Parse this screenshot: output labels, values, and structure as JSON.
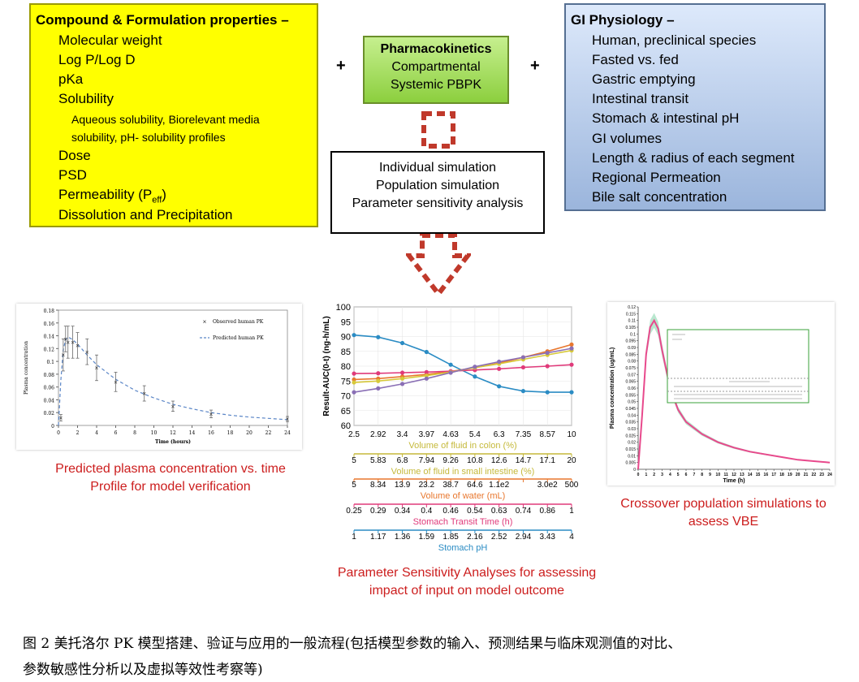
{
  "compound_box": {
    "title": "Compound & Formulation properties",
    "title_dash": " –",
    "items": [
      "Molecular weight",
      "Log P/Log D",
      "pKa",
      "Solubility"
    ],
    "solubility_sub_1": "Aqueous solubility, Biorelevant media",
    "solubility_sub_2": "solubility, pH- solubility profiles",
    "items_after": [
      "Dose",
      "PSD"
    ],
    "permeability_label": "Permeability (P",
    "permeability_sub": "eff",
    "permeability_close": ")",
    "last_item": "Dissolution and Precipitation"
  },
  "pk_box": {
    "title": "Pharmacokinetics",
    "line1": "Compartmental",
    "line2": "Systemic PBPK"
  },
  "gi_box": {
    "title": "GI Physiology",
    "title_dash": " –",
    "items": [
      "Human, preclinical species",
      "Fasted vs. fed",
      "Gastric emptying",
      "Intestinal transit",
      "Stomach & intestinal pH",
      "GI volumes",
      "Length & radius of each segment",
      "Regional Permeation",
      "Bile salt concentration"
    ]
  },
  "plus_left": "+",
  "plus_right": "+",
  "simulation_box": {
    "line1": "Individual simulation",
    "line2": "Population simulation",
    "line3": "Parameter sensitivity analysis"
  },
  "left_caption": {
    "line1": "Predicted plasma concentration vs. time",
    "line2": "Profile for model verification"
  },
  "middle_caption": {
    "line1": "Parameter Sensitivity Analyses for assessing",
    "line2": "impact of input on model outcome"
  },
  "right_caption": {
    "line1": "Crossover population simulations to",
    "line2": "assess VBE"
  },
  "figure_caption": {
    "line1": "图 2  美托洛尔 PK 模型搭建、验证与应用的一般流程(包括模型参数的输入、预测结果与临床观测值的对比、",
    "line2": "参数敏感性分析以及虚拟等效性考察等)"
  },
  "colors": {
    "yellow_box": "#ffff00",
    "red_arrow": "#c0392b",
    "caption_red": "#cc1d1d",
    "series_blue": "#2b8cc4",
    "series_orange": "#e8772e",
    "series_pink": "#e03a7a",
    "series_yellow": "#d7c93a",
    "series_purple": "#8a6fb5",
    "series_magenta": "#e8498c"
  },
  "chart_data": [
    {
      "type": "line",
      "xlabel": "Time (hours)",
      "ylabel": "Plasma concentration",
      "xlim": [
        0,
        24
      ],
      "ylim": [
        0,
        0.18
      ],
      "x_ticks": [
        "0",
        "2",
        "4",
        "6",
        "8",
        "10",
        "12",
        "14",
        "16",
        "18",
        "20",
        "22",
        "24"
      ],
      "y_ticks": [
        "0",
        "0.02",
        "0.04",
        "0.06",
        "0.08",
        "0.1",
        "0.12",
        "0.14",
        "0.16",
        "0.18"
      ],
      "legend": [
        "Observed human PK",
        "Predicted human PK"
      ],
      "series": [
        {
          "name": "Observed human PK",
          "x": [
            0.25,
            0.5,
            0.75,
            1,
            1.5,
            2,
            3,
            4,
            6,
            9,
            12,
            16,
            24
          ],
          "values": [
            0.012,
            0.11,
            0.135,
            0.13,
            0.13,
            0.125,
            0.115,
            0.09,
            0.068,
            0.05,
            0.03,
            0.018,
            0.01
          ],
          "error": [
            0.005,
            0.025,
            0.02,
            0.025,
            0.025,
            0.02,
            0.02,
            0.02,
            0.015,
            0.012,
            0.008,
            0.006,
            0.004
          ]
        },
        {
          "name": "Predicted human PK",
          "x": [
            0,
            0.25,
            0.5,
            0.75,
            1,
            1.5,
            2,
            3,
            4,
            6,
            8,
            10,
            12,
            14,
            16,
            18,
            20,
            22,
            24
          ],
          "values": [
            0,
            0.07,
            0.118,
            0.134,
            0.138,
            0.134,
            0.127,
            0.11,
            0.095,
            0.072,
            0.055,
            0.043,
            0.033,
            0.026,
            0.02,
            0.016,
            0.013,
            0.011,
            0.009
          ]
        }
      ]
    },
    {
      "type": "line",
      "ylabel": "Result-AUC(0-t) (ng-h/mL)",
      "ylim": [
        60,
        100
      ],
      "y_ticks": [
        "60",
        "65",
        "70",
        "75",
        "80",
        "85",
        "90",
        "95",
        "100"
      ],
      "x_axes": [
        {
          "name": "Volume of fluid in colon (%)",
          "color": "#c5b93a",
          "ticks": [
            "2.5",
            "2.92",
            "3.4",
            "3.97",
            "4.63",
            "5.4",
            "6.3",
            "7.35",
            "8.57",
            "10"
          ]
        },
        {
          "name": "Volume of fluid in small intestine (%)",
          "color": "#c5b93a",
          "ticks": [
            "5",
            "5.83",
            "6.8",
            "7.94",
            "9.26",
            "10.8",
            "12.6",
            "14.7",
            "17.1",
            "20"
          ]
        },
        {
          "name": "Volume of water (mL)",
          "color": "#e8772e",
          "ticks": [
            "5",
            "8.34",
            "13.9",
            "23.2",
            "38.7",
            "64.6",
            "1.1e2",
            "",
            "3.0e2",
            "500"
          ]
        },
        {
          "name": "Stomach Transit Time (h)",
          "color": "#e03a7a",
          "ticks": [
            "0.25",
            "0.29",
            "0.34",
            "0.4",
            "0.46",
            "0.54",
            "0.63",
            "0.74",
            "0.86",
            "1"
          ]
        },
        {
          "name": "Stomach pH",
          "color": "#2b8cc4",
          "ticks": [
            "1",
            "1.17",
            "1.36",
            "1.59",
            "1.85",
            "2.16",
            "2.52",
            "2.94",
            "3.43",
            "4"
          ]
        }
      ],
      "series": [
        {
          "name": "Stomach pH",
          "color": "#2b8cc4",
          "values": [
            90.5,
            89.8,
            87.8,
            84.8,
            80.5,
            76.5,
            73.2,
            71.6,
            71.2,
            71.2
          ]
        },
        {
          "name": "Volume of water (mL)",
          "color": "#e8772e",
          "values": [
            75.5,
            75.8,
            76.5,
            77.2,
            78.2,
            79.5,
            81,
            83,
            85,
            87.3
          ]
        },
        {
          "name": "Stomach Transit Time (h)",
          "color": "#e03a7a",
          "values": [
            77.5,
            77.6,
            77.8,
            78,
            78.3,
            78.7,
            79.1,
            79.6,
            80,
            80.5
          ]
        },
        {
          "name": "Volume of fluid in small intestine (%)",
          "color": "#d7c93a",
          "values": [
            74.5,
            75,
            75.8,
            76.8,
            78,
            79.5,
            80.8,
            82.3,
            83.8,
            85.3
          ]
        },
        {
          "name": "Volume of fluid in colon (%)",
          "color": "#8a6fb5",
          "values": [
            71.2,
            72.5,
            74,
            75.8,
            77.8,
            79.8,
            81.5,
            83,
            84.5,
            86
          ]
        }
      ]
    },
    {
      "type": "area",
      "xlabel": "Time (h)",
      "ylabel": "Plasma concentration (ug/mL)",
      "xlim": [
        0,
        24
      ],
      "ylim": [
        0,
        0.12
      ],
      "x_ticks": [
        "0",
        "1",
        "2",
        "3",
        "4",
        "5",
        "6",
        "7",
        "8",
        "9",
        "10",
        "11",
        "12",
        "13",
        "14",
        "15",
        "16",
        "17",
        "18",
        "19",
        "20",
        "21",
        "22",
        "23",
        "24"
      ],
      "y_ticks": [
        "0",
        "0.005",
        "0.01",
        "0.015",
        "0.02",
        "0.025",
        "0.03",
        "0.035",
        "0.04",
        "0.045",
        "0.05",
        "0.055",
        "0.06",
        "0.065",
        "0.07",
        "0.075",
        "0.08",
        "0.085",
        "0.09",
        "0.095",
        "0.1",
        "0.105",
        "0.11",
        "0.115",
        "0.12"
      ],
      "series": [
        {
          "name": "",
          "x": [
            0,
            0.5,
            1,
            1.5,
            2,
            2.5,
            3,
            4,
            5,
            6,
            8,
            10,
            12,
            14,
            16,
            18,
            20,
            22,
            24
          ],
          "values": [
            0,
            0.04,
            0.085,
            0.105,
            0.11,
            0.104,
            0.088,
            0.06,
            0.044,
            0.035,
            0.026,
            0.02,
            0.016,
            0.013,
            0.011,
            0.009,
            0.007,
            0.006,
            0.005
          ]
        }
      ]
    }
  ]
}
